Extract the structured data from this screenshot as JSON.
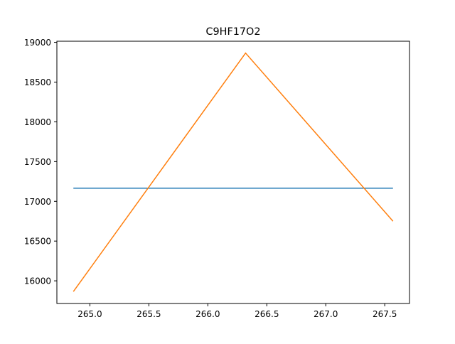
{
  "chart_data": {
    "type": "line",
    "title": "C9HF17O2",
    "xlabel": "",
    "ylabel": "",
    "xlim": [
      264.72,
      267.71
    ],
    "ylim": [
      15715,
      19014
    ],
    "x_ticks": [
      265.0,
      265.5,
      266.0,
      266.5,
      267.0,
      267.5
    ],
    "x_tick_labels": [
      "265.0",
      "265.5",
      "266.0",
      "266.5",
      "267.0",
      "267.5"
    ],
    "y_ticks": [
      16000,
      16500,
      17000,
      17500,
      18000,
      18500,
      19000
    ],
    "y_tick_labels": [
      "16000",
      "16500",
      "17000",
      "17500",
      "18000",
      "18500",
      "19000"
    ],
    "grid": false,
    "series": [
      {
        "color": "#1f77b4",
        "x": [
          264.86,
          267.57
        ],
        "y": [
          17165,
          17165
        ]
      },
      {
        "color": "#ff7f0e",
        "x": [
          264.86,
          266.32,
          267.57
        ],
        "y": [
          15865,
          18865,
          16750
        ]
      }
    ]
  }
}
